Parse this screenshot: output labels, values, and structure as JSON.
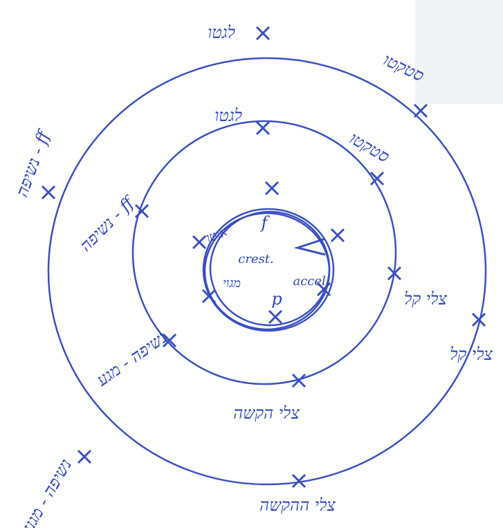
{
  "outer_ring": {
    "labels": [
      "לגטו",
      "סטקטו",
      "נשיפה - ff",
      "צלי קל",
      "נשיפה - מגע",
      "צלי ההקשה"
    ]
  },
  "middle_ring": {
    "labels": [
      "לגטו",
      "סטקטו",
      "נשיפה - ff",
      "צלי קל",
      "נשיפה - מגע",
      "צלי הקשה"
    ]
  },
  "center": {
    "labels": [
      "אוטו",
      "crest.",
      "accel.",
      "מגוי",
      "f",
      "p"
    ]
  }
}
